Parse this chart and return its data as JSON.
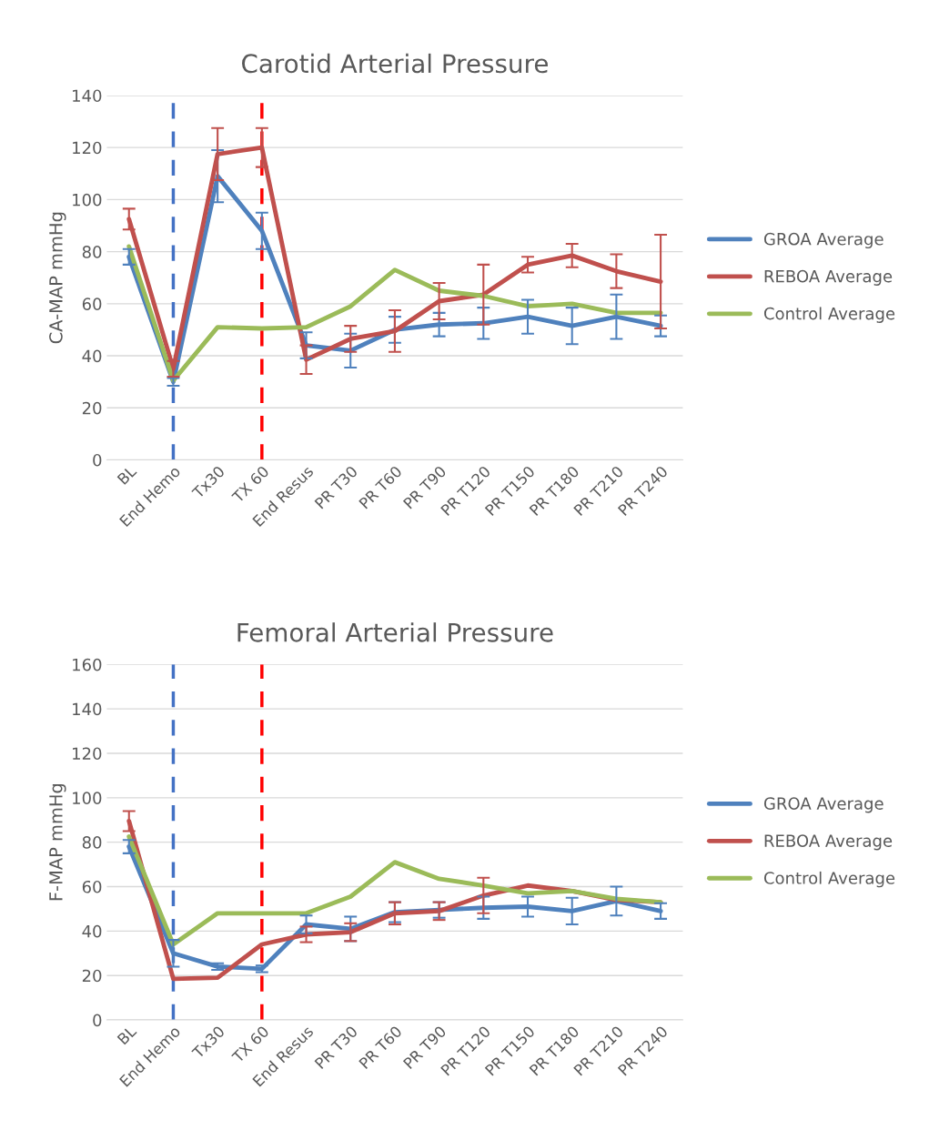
{
  "chart_data": [
    {
      "type": "line",
      "title": "Carotid Arterial Pressure",
      "ylabel": "CA-MAP mmHg",
      "categories": [
        "BL",
        "End Hemo",
        "Tx30",
        "TX 60",
        "End Resus",
        "PR T30",
        "PR T60",
        "PR T90",
        "PR T120",
        "PR T150",
        "PR T180",
        "PR T210",
        "PR T240"
      ],
      "series": [
        {
          "name": "GROA Average",
          "color": "#4f81bd",
          "values": [
            78,
            30,
            109,
            88,
            44,
            42,
            50,
            52,
            52.5,
            55,
            51.5,
            55,
            51.5
          ],
          "errors": [
            3,
            1.5,
            10,
            7,
            5,
            6.5,
            5,
            4.5,
            6,
            6.5,
            7,
            8.5,
            4
          ]
        },
        {
          "name": "REBOA Average",
          "color": "#c0504d",
          "values": [
            92.5,
            35,
            117.5,
            120,
            38.5,
            46.5,
            49.5,
            61,
            63.5,
            75,
            78.5,
            72.5,
            68.5
          ],
          "errors": [
            4,
            3,
            10,
            7.5,
            5.5,
            5,
            8,
            7,
            11.5,
            3,
            4.5,
            6.5,
            18
          ]
        },
        {
          "name": "Control Average",
          "color": "#9bbb59",
          "values": [
            82,
            30.5,
            51,
            50.5,
            51,
            59,
            73,
            65,
            63,
            59,
            60,
            56.5,
            56.5
          ]
        }
      ],
      "ylim": [
        0,
        140
      ],
      "yticks": [
        0,
        20,
        40,
        60,
        80,
        100,
        120,
        140
      ],
      "grid": "y",
      "legend": "right",
      "ref_lines": [
        {
          "axis": "x",
          "value": "End Hemo",
          "color": "#4472c4",
          "line_style": "dashed"
        },
        {
          "axis": "x",
          "value": "TX 60",
          "color": "#ff0000",
          "line_style": "dashed"
        }
      ]
    },
    {
      "type": "line",
      "title": "Femoral Arterial Pressure",
      "ylabel": "F-MAP mmHg",
      "categories": [
        "BL",
        "End Hemo",
        "Tx30",
        "TX 60",
        "End Resus",
        "PR T30",
        "PR T60",
        "PR T90",
        "PR T120",
        "PR T150",
        "PR T180",
        "PR T210",
        "PR T240"
      ],
      "series": [
        {
          "name": "GROA Average",
          "color": "#4f81bd",
          "values": [
            78,
            30,
            24,
            23,
            43,
            41,
            48.5,
            49.5,
            50.5,
            51,
            49,
            53.5,
            49
          ],
          "errors": [
            3,
            6,
            1.5,
            1.5,
            4,
            5.5,
            4.5,
            3.5,
            5,
            4.5,
            6,
            6.5,
            3.5
          ]
        },
        {
          "name": "REBOA Average",
          "color": "#c0504d",
          "values": [
            89.5,
            18.5,
            19,
            34,
            38.5,
            39.5,
            48,
            49,
            56,
            60.5,
            58,
            54,
            53
          ],
          "errors": [
            4.5,
            null,
            null,
            null,
            3.5,
            4,
            5,
            4,
            8,
            null,
            null,
            null,
            null
          ]
        },
        {
          "name": "Control Average",
          "color": "#9bbb59",
          "values": [
            82.5,
            34,
            48,
            48,
            48,
            55.5,
            71,
            63.5,
            60.5,
            57,
            58,
            54.5,
            53
          ]
        }
      ],
      "ylim": [
        0,
        160
      ],
      "yticks": [
        0,
        20,
        40,
        60,
        80,
        100,
        120,
        140,
        160
      ],
      "grid": "y",
      "legend": "right",
      "ref_lines": [
        {
          "axis": "x",
          "value": "End Hemo",
          "color": "#4472c4",
          "line_style": "dashed"
        },
        {
          "axis": "x",
          "value": "TX 60",
          "color": "#ff0000",
          "line_style": "dashed"
        }
      ]
    }
  ]
}
